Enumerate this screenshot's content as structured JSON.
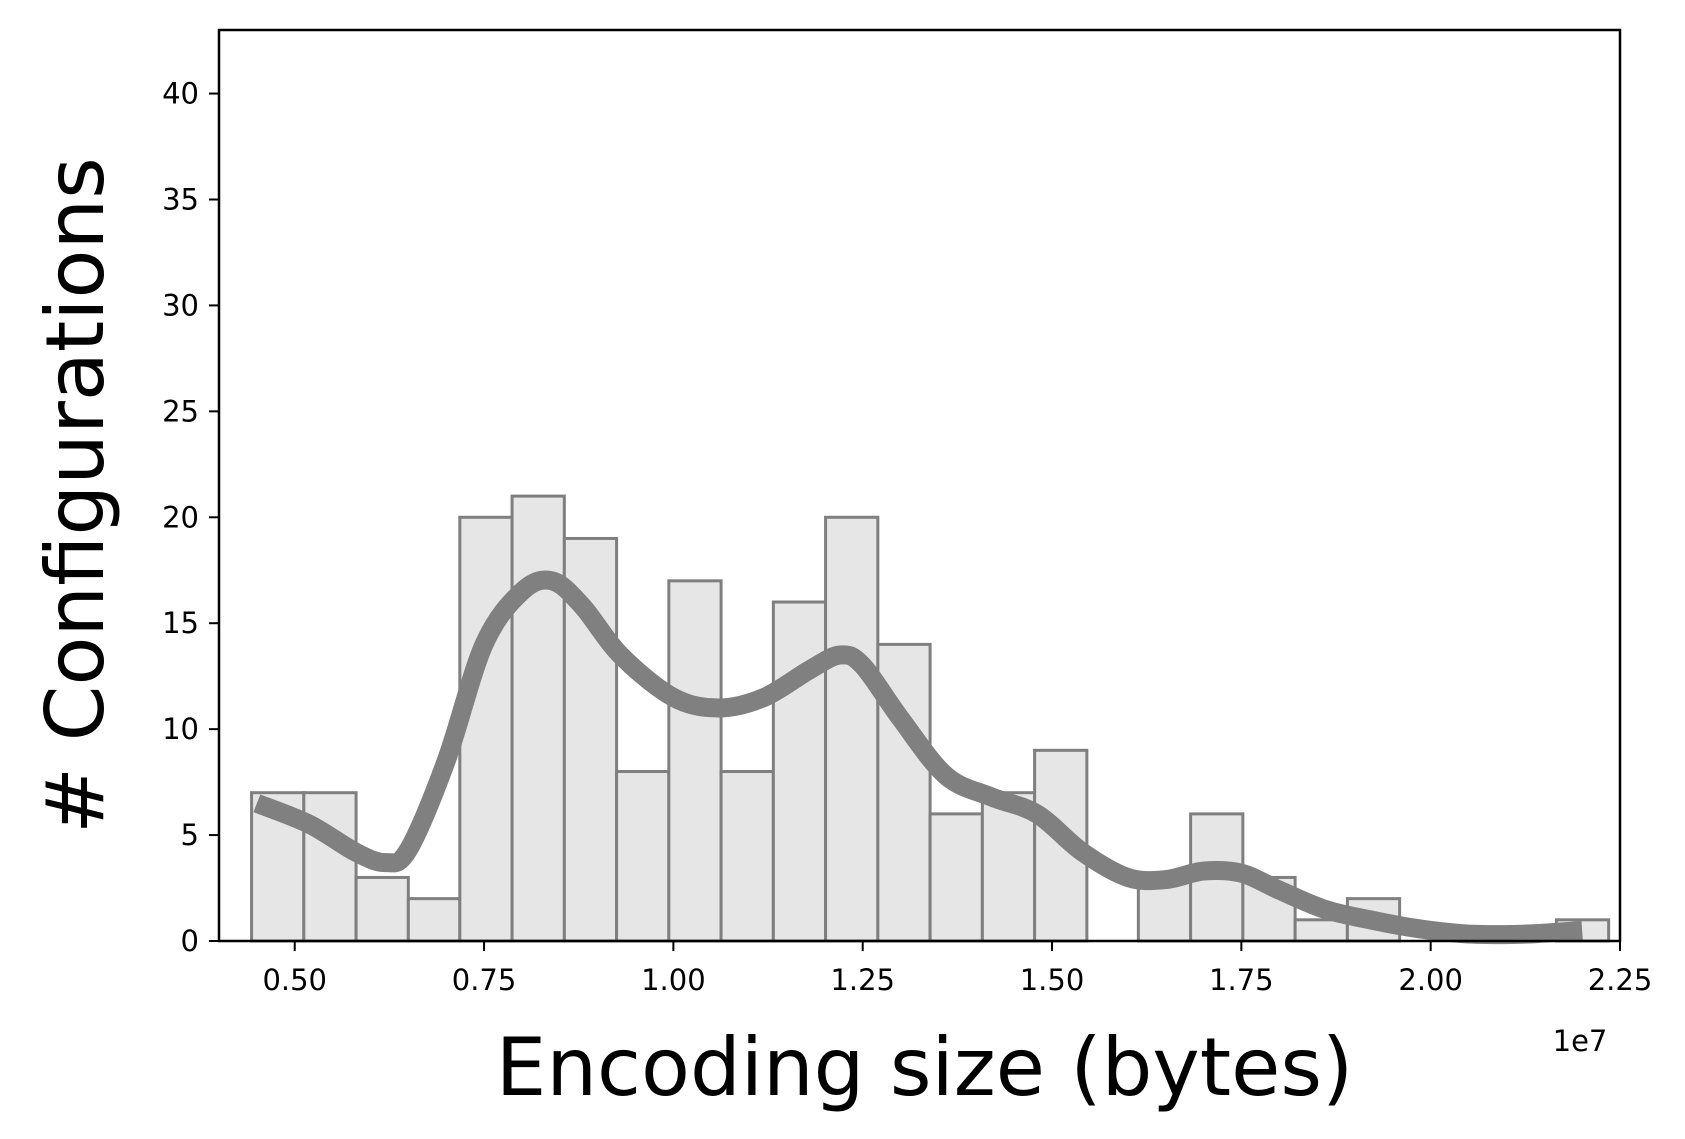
{
  "chart_data": {
    "type": "bar",
    "title": "",
    "xlabel": "Encoding size (bytes)",
    "ylabel": "# Configurations",
    "x_offset_label": "1e7",
    "xlim": [
      0.4,
      2.25
    ],
    "ylim": [
      0,
      43
    ],
    "xticks": [
      {
        "value": 0.5,
        "label": "0.50"
      },
      {
        "value": 0.75,
        "label": "0.75"
      },
      {
        "value": 1.0,
        "label": "1.00"
      },
      {
        "value": 1.25,
        "label": "1.25"
      },
      {
        "value": 1.5,
        "label": "1.50"
      },
      {
        "value": 1.75,
        "label": "1.75"
      },
      {
        "value": 2.0,
        "label": "2.00"
      },
      {
        "value": 2.25,
        "label": "2.25"
      }
    ],
    "yticks": [
      {
        "value": 0,
        "label": "0"
      },
      {
        "value": 5,
        "label": "5"
      },
      {
        "value": 10,
        "label": "10"
      },
      {
        "value": 15,
        "label": "15"
      },
      {
        "value": 20,
        "label": "20"
      },
      {
        "value": 25,
        "label": "25"
      },
      {
        "value": 30,
        "label": "30"
      },
      {
        "value": 35,
        "label": "35"
      },
      {
        "value": 40,
        "label": "40"
      }
    ],
    "bin_edges": [
      0.443,
      0.512,
      0.581,
      0.65,
      0.718,
      0.787,
      0.856,
      0.925,
      0.994,
      1.063,
      1.132,
      1.201,
      1.27,
      1.339,
      1.408,
      1.477,
      1.546,
      1.614,
      1.683,
      1.752,
      1.821,
      1.89,
      1.959,
      2.028,
      2.097,
      2.166,
      2.235
    ],
    "bin_counts": [
      7,
      7,
      3,
      2,
      20,
      21,
      19,
      8,
      17,
      8,
      16,
      20,
      14,
      6,
      7,
      9,
      0,
      3,
      6,
      3,
      1,
      2,
      0,
      0,
      0,
      1
    ],
    "kde_line": {
      "x": [
        0.45,
        0.52,
        0.58,
        0.62,
        0.65,
        0.7,
        0.75,
        0.8,
        0.84,
        0.88,
        0.93,
        1.0,
        1.06,
        1.12,
        1.18,
        1.22,
        1.25,
        1.3,
        1.36,
        1.42,
        1.48,
        1.54,
        1.6,
        1.65,
        1.7,
        1.75,
        1.8,
        1.86,
        1.92,
        1.98,
        2.04,
        2.09,
        2.14,
        2.2
      ],
      "y": [
        6.5,
        5.5,
        4.2,
        3.7,
        4.3,
        8.5,
        14.0,
        16.5,
        17.0,
        15.8,
        13.5,
        11.5,
        11.0,
        11.5,
        12.8,
        13.5,
        13.0,
        10.5,
        7.8,
        6.8,
        6.0,
        4.2,
        3.0,
        2.9,
        3.3,
        3.2,
        2.4,
        1.5,
        1.0,
        0.6,
        0.35,
        0.3,
        0.35,
        0.5
      ]
    },
    "colors": {
      "bar_fill": "#e6e6e6",
      "bar_edge": "#7f7f7f",
      "bar_edge_overlap": "#404040",
      "kde_line": "#808080",
      "axis": "#000000"
    },
    "grid": false,
    "legend": "none"
  }
}
